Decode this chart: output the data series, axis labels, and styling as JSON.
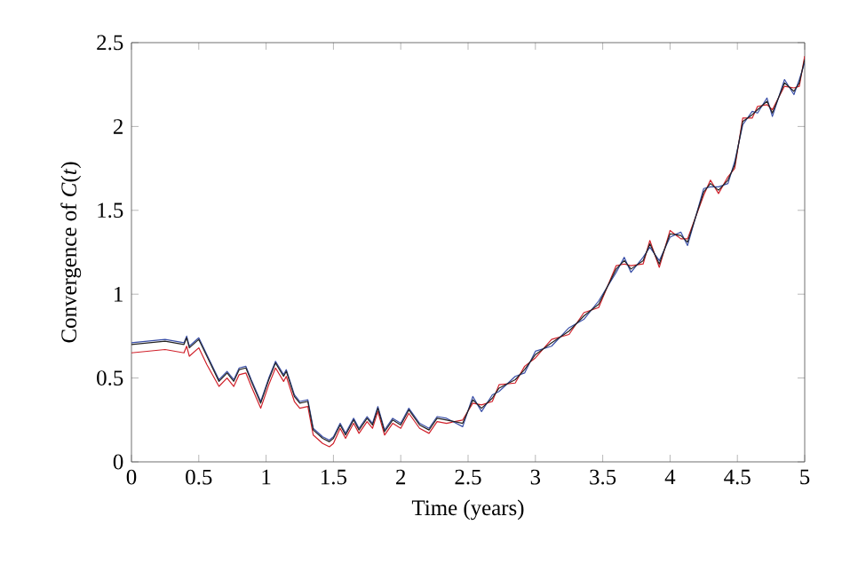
{
  "chart_data": {
    "type": "line",
    "xlabel": "Time (years)",
    "ylabel": "Convergence of *C*(*t*)",
    "x": [
      0,
      0.25,
      0.39,
      0.41,
      0.43,
      0.5,
      0.56,
      0.65,
      0.71,
      0.76,
      0.8,
      0.85,
      0.89,
      0.96,
      1.02,
      1.07,
      1.13,
      1.15,
      1.21,
      1.25,
      1.31,
      1.35,
      1.42,
      1.47,
      1.5,
      1.55,
      1.59,
      1.65,
      1.69,
      1.75,
      1.79,
      1.83,
      1.88,
      1.94,
      2.0,
      2.06,
      2.14,
      2.21,
      2.27,
      2.34,
      2.46,
      2.535,
      2.6,
      2.68,
      2.73,
      2.85,
      2.92,
      3.0,
      3.12,
      3.25,
      3.36,
      3.47,
      3.6,
      3.66,
      3.71,
      3.8,
      3.85,
      3.92,
      4.0,
      4.08,
      4.13,
      4.25,
      4.3,
      4.36,
      4.43,
      4.48,
      4.54,
      4.61,
      4.65,
      4.72,
      4.76,
      4.85,
      4.92,
      4.96,
      5.0
    ],
    "series": [
      {
        "color": "#d0202a",
        "values": [
          0.65,
          0.67,
          0.65,
          0.69,
          0.63,
          0.68,
          0.58,
          0.45,
          0.5,
          0.45,
          0.52,
          0.53,
          0.45,
          0.32,
          0.46,
          0.56,
          0.48,
          0.51,
          0.36,
          0.32,
          0.33,
          0.16,
          0.11,
          0.09,
          0.11,
          0.2,
          0.14,
          0.23,
          0.17,
          0.24,
          0.2,
          0.3,
          0.16,
          0.23,
          0.2,
          0.29,
          0.2,
          0.17,
          0.24,
          0.23,
          0.25,
          0.35,
          0.34,
          0.36,
          0.46,
          0.47,
          0.57,
          0.62,
          0.73,
          0.76,
          0.89,
          0.92,
          1.17,
          1.18,
          1.17,
          1.18,
          1.32,
          1.16,
          1.38,
          1.33,
          1.33,
          1.59,
          1.68,
          1.6,
          1.7,
          1.75,
          2.05,
          2.05,
          2.12,
          2.13,
          2.1,
          2.24,
          2.23,
          2.24,
          2.42
        ]
      },
      {
        "color": "#3a4fa8",
        "values": [
          0.71,
          0.73,
          0.71,
          0.75,
          0.69,
          0.74,
          0.64,
          0.49,
          0.54,
          0.49,
          0.56,
          0.57,
          0.49,
          0.36,
          0.5,
          0.6,
          0.52,
          0.55,
          0.4,
          0.36,
          0.37,
          0.2,
          0.15,
          0.13,
          0.15,
          0.23,
          0.17,
          0.26,
          0.2,
          0.27,
          0.23,
          0.33,
          0.19,
          0.26,
          0.23,
          0.32,
          0.23,
          0.2,
          0.27,
          0.26,
          0.21,
          0.39,
          0.3,
          0.4,
          0.42,
          0.51,
          0.53,
          0.66,
          0.69,
          0.8,
          0.85,
          0.96,
          1.13,
          1.22,
          1.13,
          1.22,
          1.28,
          1.2,
          1.34,
          1.37,
          1.29,
          1.63,
          1.64,
          1.64,
          1.66,
          1.79,
          2.01,
          2.09,
          2.08,
          2.17,
          2.06,
          2.28,
          2.19,
          2.28,
          2.38
        ]
      },
      {
        "color": "#222222",
        "values": [
          0.7,
          0.72,
          0.7,
          0.74,
          0.68,
          0.73,
          0.63,
          0.48,
          0.53,
          0.48,
          0.55,
          0.56,
          0.48,
          0.35,
          0.49,
          0.59,
          0.51,
          0.54,
          0.39,
          0.35,
          0.36,
          0.19,
          0.14,
          0.12,
          0.14,
          0.22,
          0.16,
          0.25,
          0.19,
          0.26,
          0.22,
          0.32,
          0.18,
          0.25,
          0.22,
          0.31,
          0.22,
          0.19,
          0.26,
          0.25,
          0.23,
          0.37,
          0.32,
          0.38,
          0.44,
          0.49,
          0.55,
          0.64,
          0.71,
          0.78,
          0.87,
          0.94,
          1.15,
          1.2,
          1.15,
          1.2,
          1.3,
          1.18,
          1.36,
          1.35,
          1.31,
          1.61,
          1.66,
          1.62,
          1.68,
          1.77,
          2.03,
          2.07,
          2.1,
          2.15,
          2.08,
          2.26,
          2.21,
          2.26,
          2.4
        ]
      }
    ],
    "xlim": [
      0,
      5
    ],
    "ylim": [
      0,
      2.5
    ],
    "xticks": [
      0,
      0.5,
      1,
      1.5,
      2,
      2.5,
      3,
      3.5,
      4,
      4.5,
      5
    ],
    "yticks": [
      0,
      0.5,
      1,
      1.5,
      2,
      2.5
    ],
    "grid": false,
    "marker": "none",
    "line_style": "solid"
  }
}
